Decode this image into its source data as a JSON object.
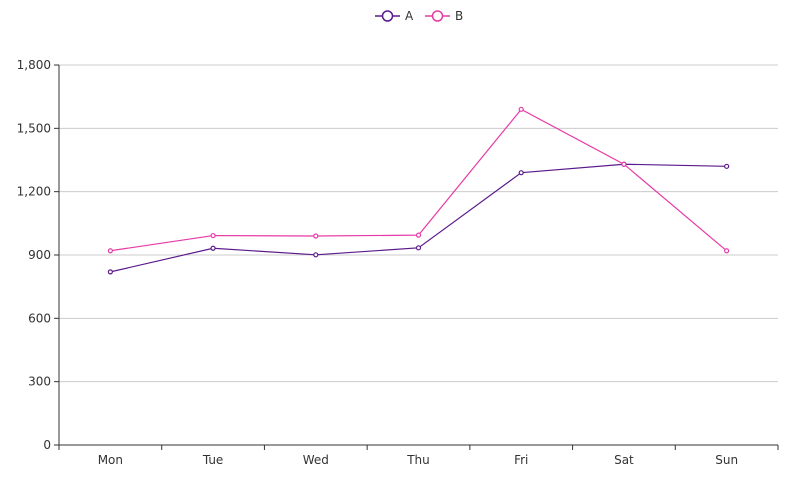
{
  "chart_data": {
    "type": "line",
    "categories": [
      "Mon",
      "Tue",
      "Wed",
      "Thu",
      "Fri",
      "Sat",
      "Sun"
    ],
    "series": [
      {
        "name": "A",
        "color": "#5b1a8c",
        "values": [
          820,
          932,
          901,
          934,
          1290,
          1330,
          1320
        ]
      },
      {
        "name": "B",
        "color": "#e73aa6",
        "values": [
          920,
          992,
          990,
          994,
          1590,
          1330,
          920
        ]
      }
    ],
    "ylim": [
      0,
      1800
    ],
    "yticks": [
      "0",
      "300",
      "600",
      "900",
      "1,200",
      "1,500",
      "1,800"
    ],
    "ytick_values": [
      0,
      300,
      600,
      900,
      1200,
      1500,
      1800
    ],
    "grid": true,
    "legend": "top-center"
  }
}
